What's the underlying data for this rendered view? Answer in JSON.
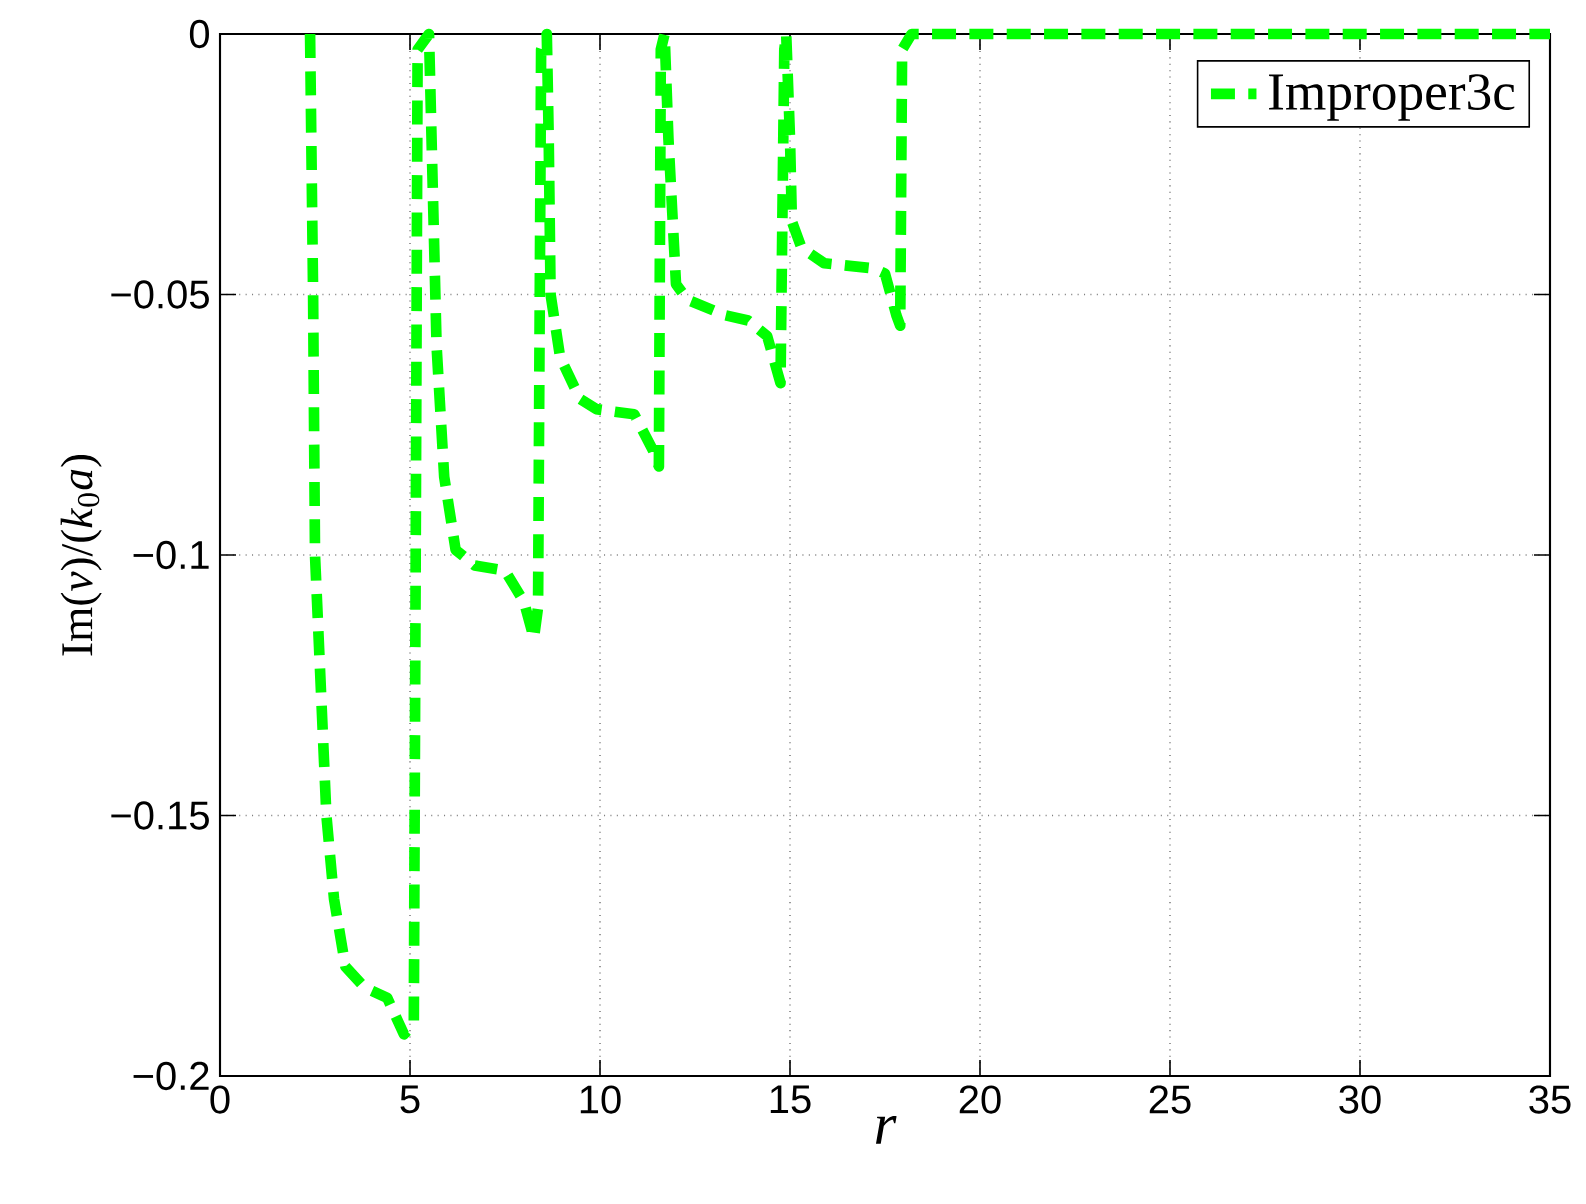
{
  "chart_data": {
    "type": "line",
    "xlabel": "r",
    "ylabel": "Im(*v*)/(*k*$_{0}$*a*)",
    "xlim": [
      0,
      35
    ],
    "ylim": [
      -0.2,
      0
    ],
    "xticks": [
      0,
      5,
      10,
      15,
      20,
      25,
      30,
      35
    ],
    "yticks": [
      {
        "value": -0.2,
        "label": "−0.2"
      },
      {
        "value": -0.15,
        "label": "−0.15"
      },
      {
        "value": -0.1,
        "label": "−0.1"
      },
      {
        "value": -0.05,
        "label": "−0.05"
      },
      0
    ],
    "grid": true,
    "legend": "top right",
    "line_style": "dashed",
    "marker": "none",
    "series": [
      {
        "name": "Improper3c",
        "color": "#00ff00",
        "x": [
          2.37,
          2.45,
          2.5,
          2.8,
          3.0,
          3.3,
          3.8,
          4.4,
          4.84,
          5.1,
          5.15,
          5.2,
          5.5,
          5.6,
          5.7,
          5.9,
          6.2,
          6.7,
          7.5,
          8.0,
          8.26,
          8.37,
          8.45,
          8.6,
          8.65,
          8.7,
          8.95,
          9.47,
          9.9,
          10.9,
          11.4,
          11.55,
          11.6,
          11.7,
          11.8,
          12.0,
          12.3,
          13.3,
          13.9,
          14.4,
          14.75,
          14.85,
          14.9,
          15.0,
          15.05,
          15.3,
          15.9,
          17.2,
          17.5,
          17.8,
          17.9,
          17.95,
          18.2,
          35
        ],
        "values": [
          0,
          -0.05,
          -0.1,
          -0.15,
          -0.166,
          -0.179,
          -0.183,
          -0.185,
          -0.192,
          -0.19,
          -0.1,
          -0.003,
          0,
          -0.03,
          -0.06,
          -0.085,
          -0.099,
          -0.102,
          -0.103,
          -0.109,
          -0.116,
          -0.11,
          -0.003,
          0,
          -0.02,
          -0.05,
          -0.062,
          -0.07,
          -0.072,
          -0.073,
          -0.08,
          -0.083,
          -0.003,
          0,
          -0.02,
          -0.048,
          -0.051,
          -0.054,
          -0.055,
          -0.058,
          -0.067,
          -0.003,
          0,
          -0.02,
          -0.036,
          -0.041,
          -0.044,
          -0.045,
          -0.046,
          -0.054,
          -0.056,
          -0.003,
          0,
          0
        ]
      }
    ]
  }
}
